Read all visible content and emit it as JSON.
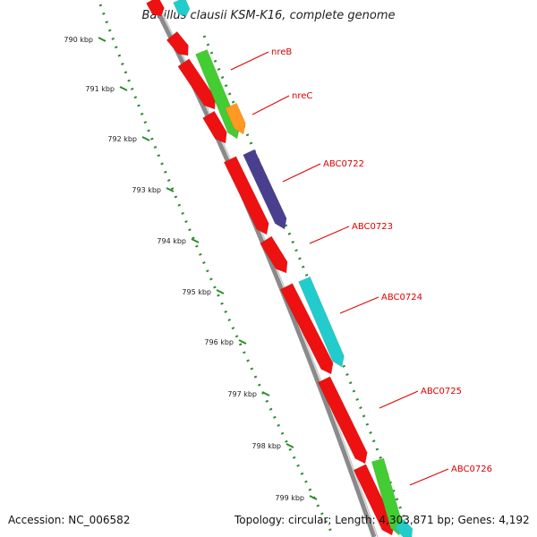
{
  "title": "Bacillus clausii KSM-K16, complete genome",
  "footer": {
    "accession": "Accession: NC_006582",
    "stats": "Topology: circular; Length: 4,303,871 bp; Genes: 4,192"
  },
  "colors": {
    "backbone": "#8a8a8a",
    "ruler_dots": "#2e8b2e",
    "red_cds": "#ee1111",
    "green_cds": "#44cc33",
    "orange_cds": "#ff9922",
    "purple_cds": "#4a3f8f",
    "cyan_cds": "#22cccc",
    "label_red": "#dd0000"
  },
  "ruler": {
    "ticks": [
      "790 kbp",
      "791 kbp",
      "792 kbp",
      "793 kbp",
      "794 kbp",
      "795 kbp",
      "796 kbp",
      "797 kbp",
      "798 kbp",
      "799 kbp"
    ]
  },
  "genes": [
    {
      "name": "nreB"
    },
    {
      "name": "nreC"
    },
    {
      "name": "ABC0722"
    },
    {
      "name": "ABC0723"
    },
    {
      "name": "ABC0724"
    },
    {
      "name": "ABC0725"
    },
    {
      "name": "ABC0726"
    }
  ]
}
